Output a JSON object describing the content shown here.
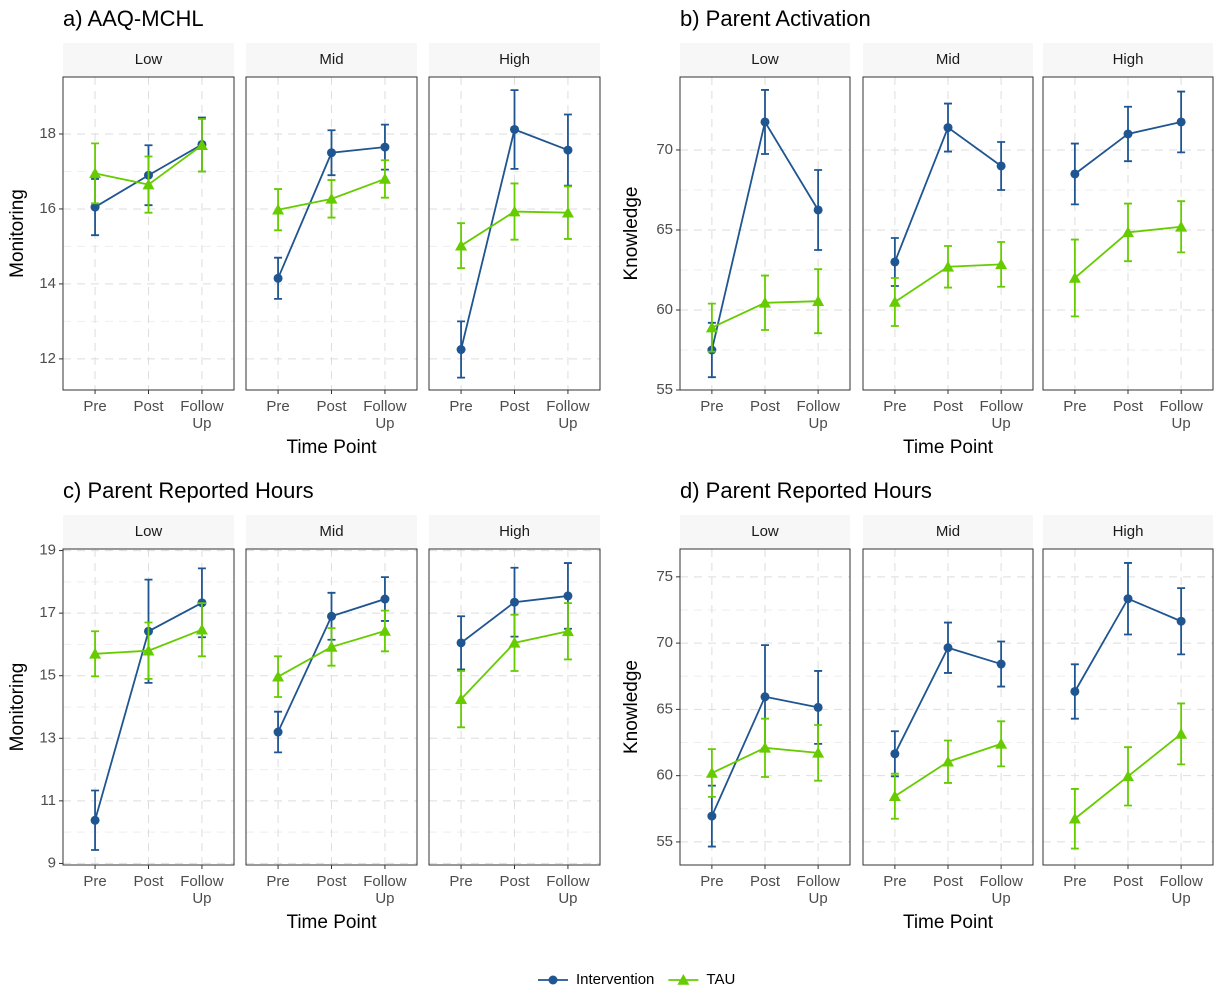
{
  "chart_data": [
    {
      "type": "line",
      "title": "a) AAQ-MCHL",
      "xlabel": "Time Point",
      "ylabel": "Monitoring",
      "categories": [
        "Pre",
        "Post",
        "Follow\nUp"
      ],
      "ylim": [
        11.17,
        19.52
      ],
      "yticks": [
        12,
        14,
        16,
        18
      ],
      "grid": true,
      "facets": [
        {
          "name": "Low",
          "series": [
            {
              "values": [
                16.05,
                16.9,
                17.72
              ],
              "errors": [
                0.75,
                0.8,
                0.72
              ]
            },
            {
              "values": [
                16.95,
                16.65,
                17.7
              ],
              "errors": [
                0.8,
                0.75,
                0.7
              ]
            }
          ]
        },
        {
          "name": "Mid",
          "series": [
            {
              "values": [
                14.15,
                17.5,
                17.65
              ],
              "errors": [
                0.55,
                0.6,
                0.6
              ]
            },
            {
              "values": [
                15.98,
                16.27,
                16.8
              ],
              "errors": [
                0.55,
                0.5,
                0.5
              ]
            }
          ]
        },
        {
          "name": "High",
          "series": [
            {
              "values": [
                12.25,
                18.12,
                17.57
              ],
              "errors": [
                0.75,
                1.05,
                0.95
              ]
            },
            {
              "values": [
                15.02,
                15.93,
                15.9
              ],
              "errors": [
                0.6,
                0.75,
                0.7
              ]
            }
          ]
        }
      ]
    },
    {
      "type": "line",
      "title": "b) Parent Activation",
      "xlabel": "Time Point",
      "ylabel": "Knowledge",
      "categories": [
        "Pre",
        "Post",
        "Follow\nUp"
      ],
      "ylim": [
        55,
        74.56
      ],
      "yticks": [
        55,
        60,
        65,
        70
      ],
      "grid": true,
      "facets": [
        {
          "name": "Low",
          "series": [
            {
              "values": [
                57.5,
                71.75,
                66.25
              ],
              "errors": [
                1.7,
                2.0,
                2.5
              ]
            },
            {
              "values": [
                58.9,
                60.45,
                60.55
              ],
              "errors": [
                1.5,
                1.7,
                2.0
              ]
            }
          ]
        },
        {
          "name": "Mid",
          "series": [
            {
              "values": [
                63.0,
                71.4,
                69.0
              ],
              "errors": [
                1.5,
                1.5,
                1.5
              ]
            },
            {
              "values": [
                60.5,
                62.7,
                62.85
              ],
              "errors": [
                1.5,
                1.3,
                1.4
              ]
            }
          ]
        },
        {
          "name": "High",
          "series": [
            {
              "values": [
                68.5,
                71.0,
                71.75
              ],
              "errors": [
                1.9,
                1.7,
                1.9
              ]
            },
            {
              "values": [
                62.0,
                64.85,
                65.2
              ],
              "errors": [
                2.4,
                1.8,
                1.6
              ]
            }
          ]
        }
      ]
    },
    {
      "type": "line",
      "title": "c) Parent Reported Hours",
      "xlabel": "Time Point",
      "ylabel": "Monitoring",
      "categories": [
        "Pre",
        "Post",
        "Follow\nUp"
      ],
      "ylim": [
        8.95,
        19.05
      ],
      "yticks": [
        9,
        11,
        13,
        15,
        17,
        19
      ],
      "grid": true,
      "facets": [
        {
          "name": "Low",
          "series": [
            {
              "values": [
                10.38,
                16.42,
                17.33
              ],
              "errors": [
                0.95,
                1.65,
                1.1
              ]
            },
            {
              "values": [
                15.7,
                15.8,
                16.47
              ],
              "errors": [
                0.72,
                0.9,
                0.85
              ]
            }
          ]
        },
        {
          "name": "Mid",
          "series": [
            {
              "values": [
                13.2,
                16.9,
                17.45
              ],
              "errors": [
                0.65,
                0.75,
                0.7
              ]
            },
            {
              "values": [
                14.97,
                15.92,
                16.43
              ],
              "errors": [
                0.65,
                0.6,
                0.65
              ]
            }
          ]
        },
        {
          "name": "High",
          "series": [
            {
              "values": [
                16.05,
                17.35,
                17.55
              ],
              "errors": [
                0.85,
                1.1,
                1.05
              ]
            },
            {
              "values": [
                14.25,
                16.05,
                16.42
              ],
              "errors": [
                0.9,
                0.9,
                0.9
              ]
            }
          ]
        }
      ]
    },
    {
      "type": "line",
      "title": "d) Parent Reported Hours",
      "xlabel": "Time Point",
      "ylabel": "Knowledge",
      "categories": [
        "Pre",
        "Post",
        "Follow\nUp"
      ],
      "ylim": [
        53.26,
        77.1
      ],
      "yticks": [
        55,
        60,
        65,
        70,
        75
      ],
      "grid": true,
      "facets": [
        {
          "name": "Low",
          "series": [
            {
              "values": [
                56.95,
                65.95,
                65.15
              ],
              "errors": [
                2.3,
                3.9,
                2.75
              ]
            },
            {
              "values": [
                60.2,
                62.1,
                61.72
              ],
              "errors": [
                1.8,
                2.2,
                2.1
              ]
            }
          ]
        },
        {
          "name": "Mid",
          "series": [
            {
              "values": [
                61.65,
                69.65,
                68.42
              ],
              "errors": [
                1.7,
                1.9,
                1.7
              ]
            },
            {
              "values": [
                58.45,
                61.05,
                62.4
              ],
              "errors": [
                1.7,
                1.6,
                1.7
              ]
            }
          ]
        },
        {
          "name": "High",
          "series": [
            {
              "values": [
                66.35,
                73.35,
                71.65
              ],
              "errors": [
                2.05,
                2.7,
                2.5
              ]
            },
            {
              "values": [
                56.75,
                59.95,
                63.15
              ],
              "errors": [
                2.25,
                2.2,
                2.3
              ]
            }
          ]
        }
      ]
    }
  ],
  "legend": [
    {
      "name": "Intervention",
      "color": "#1f5591",
      "marker": "circle"
    },
    {
      "name": "TAU",
      "color": "#66cc00",
      "marker": "triangle"
    }
  ]
}
